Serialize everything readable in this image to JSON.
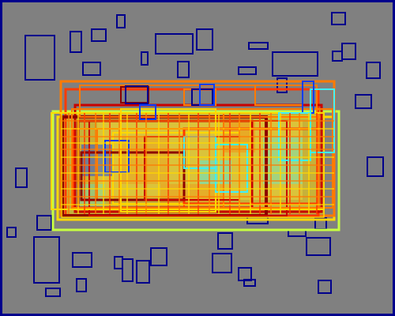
{
  "canvas": {
    "background": "#808080",
    "border_color": "#00008c"
  },
  "palette": {
    "dark_blue": "#00008c",
    "blue": "#0b3cff",
    "cyan": "#3cf0ff",
    "green_yellow": "#c8ff40",
    "yellow": "#ffd800",
    "orange": "#ff7a00",
    "red_orange": "#ff3a00",
    "red": "#c80000",
    "dark_red": "#8c0000"
  }
}
